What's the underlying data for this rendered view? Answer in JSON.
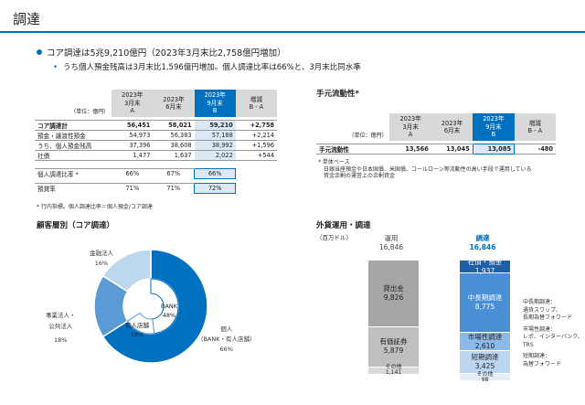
{
  "page": {
    "title": "調達",
    "bullet1": "コア調達は5兆9,210億円（2023年3月末比2,758億円増加）",
    "bullet2": "うち個人預金残高は3月末比1,596億円増加。個人調達比率は66%と、3月末比同水準"
  },
  "core_table": {
    "unit": "（単位：億円）",
    "headers": [
      {
        "l1": "2023年",
        "l2": "3月末",
        "l3": "A"
      },
      {
        "l1": "2023年",
        "l2": "6月末",
        "l3": ""
      },
      {
        "l1": "2023年",
        "l2": "9月末",
        "l3": "B"
      },
      {
        "l1": "増減",
        "l2": "B - A",
        "l3": ""
      }
    ],
    "rows": [
      {
        "label": "コア調達計",
        "a": "56,451",
        "b": "58,021",
        "c": "59,210",
        "d": "+2,758"
      },
      {
        "label": "預金・譲渡性預金",
        "a": "54,973",
        "b": "56,383",
        "c": "57,188",
        "d": "+2,214"
      },
      {
        "label": "うち、個人預金残高",
        "a": "37,396",
        "b": "38,608",
        "c": "38,992",
        "d": "+1,596"
      },
      {
        "label": "社債",
        "a": "1,477",
        "b": "1,637",
        "c": "2,022",
        "d": "+544"
      }
    ],
    "ratio_rows": [
      {
        "label": "個人調達比率 *",
        "a": "66%",
        "b": "67%",
        "c": "66%"
      },
      {
        "label": "預貸率",
        "a": "71%",
        "b": "71%",
        "c": "72%"
      }
    ],
    "note": "* 行内指標。個人調達比率＝個人預金/コア調達"
  },
  "liquidity": {
    "title": "手元流動性*",
    "unit": "（単位：億円）",
    "headers": [
      {
        "l1": "2023年",
        "l2": "3月末",
        "l3": "A"
      },
      {
        "l1": "2023年",
        "l2": "6月末",
        "l3": ""
      },
      {
        "l1": "2023年",
        "l2": "9月末",
        "l3": "B"
      },
      {
        "l1": "増減",
        "l2": "B - A",
        "l3": ""
      }
    ],
    "row": {
      "label": "手元流動性",
      "a": "13,566",
      "b": "13,045",
      "c": "13,085",
      "d": "-480"
    },
    "notes": [
      "* 単体ベース",
      "日銀当座預金や日本国債、米国債、コールローン等流動性の高い手段で運用している",
      "資金余剰の運営上の余剰資金"
    ]
  },
  "donut": {
    "title": "顧客層別（コア調達）",
    "segments": [
      {
        "name": "個人",
        "sub": "（BANK・有人店舗）",
        "pct": "66%",
        "value": 66,
        "color": "#0070c0"
      },
      {
        "name": "事業法人・",
        "sub": "公共法人",
        "pct": "18%",
        "value": 18,
        "color": "#5b9bd5"
      },
      {
        "name": "金融法人",
        "sub": "",
        "pct": "16%",
        "value": 16,
        "color": "#bdd7ee"
      }
    ],
    "inner": [
      {
        "name": "BANK",
        "pct": "48%",
        "value": 48,
        "color": "#0070c0"
      },
      {
        "name": "有人店舗",
        "pct": "18%",
        "value": 18,
        "color": "#5b9bd5"
      }
    ]
  },
  "fx": {
    "title": "外貨運用・調達",
    "unit": "（百万ドル）",
    "use": {
      "label": "運用",
      "total": "16,846",
      "items": [
        {
          "name": "貸出金",
          "value": "9,826",
          "num": 9826,
          "color": "#a6a6a6"
        },
        {
          "name": "有価証券",
          "value": "5,879",
          "num": 5879,
          "color": "#bfbfbf"
        },
        {
          "name": "その他",
          "value": "1,141",
          "num": 1141,
          "color": "#d9d9d9"
        }
      ]
    },
    "fund": {
      "label": "調達",
      "total": "16,846",
      "items": [
        {
          "name": "社債・預金",
          "value": "1,937",
          "num": 1937,
          "color": "#1f5fa8"
        },
        {
          "name": "中長期調達",
          "value": "8,775",
          "num": 8775,
          "color": "#4a8fd6"
        },
        {
          "name": "市場性調達",
          "value": "2,610",
          "num": 2610,
          "color": "#8db9e8"
        },
        {
          "name": "短期調達",
          "value": "3,425",
          "num": 3425,
          "color": "#bcd6f2"
        },
        {
          "name": "その他",
          "value": "98",
          "num": 98,
          "color": "#e6eff9"
        }
      ]
    },
    "legend": [
      {
        "title": "中長期調達：",
        "lines": [
          "通貨スワップ、",
          "長期為替フォワード"
        ]
      },
      {
        "title": "市場性調達：",
        "lines": [
          "レポ、インターバンク、",
          "TRS"
        ]
      },
      {
        "title": "短期調達：",
        "lines": [
          "為替フォワード"
        ]
      }
    ]
  }
}
